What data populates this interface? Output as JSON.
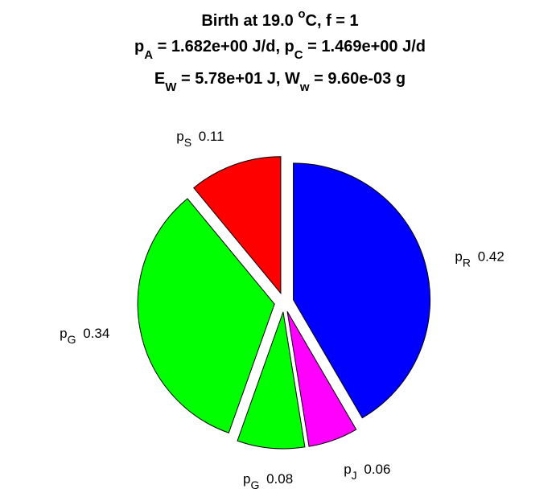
{
  "chart_data": {
    "type": "pie",
    "title_lines": [
      {
        "parts": [
          {
            "t": "Birth at 19.0 "
          },
          {
            "t": "o",
            "sup": true
          },
          {
            "t": "C, f = 1"
          }
        ]
      },
      {
        "parts": [
          {
            "t": "p"
          },
          {
            "t": "A",
            "sub": true
          },
          {
            "t": " = 1.682e+00 J/d, p"
          },
          {
            "t": "C",
            "sub": true
          },
          {
            "t": " = 1.469e+00 J/d"
          }
        ]
      },
      {
        "parts": [
          {
            "t": "E"
          },
          {
            "t": "W",
            "sub": true
          },
          {
            "t": " = 5.78e+01 J, W"
          },
          {
            "t": "w",
            "sub": true
          },
          {
            "t": " = 9.60e-03 g"
          }
        ]
      }
    ],
    "slices": [
      {
        "label": "p",
        "sub": "R",
        "value_text": "0.42",
        "value": 0.4159,
        "color": "#0000ff"
      },
      {
        "label": "p",
        "sub": "J",
        "value_text": "0.06",
        "value": 0.0587,
        "color": "#ff00ff"
      },
      {
        "label": "p",
        "sub": "G",
        "value_text": "0.08",
        "value": 0.0797,
        "color": "#00ff00"
      },
      {
        "label": "p",
        "sub": "G",
        "value_text": "0.34",
        "value": 0.3359,
        "color": "#00ff00"
      },
      {
        "label": "p",
        "sub": "S",
        "value_text": "0.11",
        "value": 0.1098,
        "color": "#ff0000"
      }
    ],
    "start_angle": "12 o'clock",
    "direction": "clockwise",
    "exploded": true
  }
}
